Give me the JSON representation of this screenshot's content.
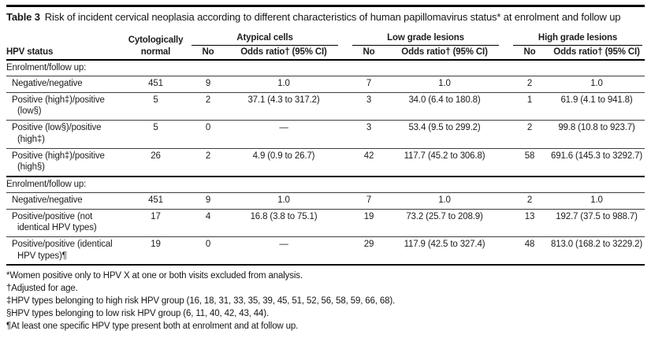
{
  "colors": {
    "text": "#1c1c1c",
    "rule": "#000000",
    "background": "#ffffff"
  },
  "title": {
    "label": "Table 3",
    "text": "Risk of incident cervical neoplasia according to different characteristics of human papillomavirus status* at enrolment and follow up"
  },
  "table": {
    "header": {
      "hpv_status": "HPV status",
      "cyto_normal": "Cytologically normal",
      "groups": [
        {
          "label": "Atypical cells",
          "no": "No",
          "or": "Odds ratio† (95% CI)"
        },
        {
          "label": "Low grade lesions",
          "no": "No",
          "or": "Odds ratio† (95% CI)"
        },
        {
          "label": "High grade lesions",
          "no": "No",
          "or": "Odds ratio† (95% CI)"
        }
      ]
    },
    "sections": [
      {
        "header": "Enrolment/follow up:",
        "rows": [
          {
            "status": "Negative/negative",
            "cyto": "451",
            "atypical": {
              "no": "9",
              "or": "1.0"
            },
            "low": {
              "no": "7",
              "or": "1.0"
            },
            "high": {
              "no": "2",
              "or": "1.0"
            }
          },
          {
            "status": "Positive (high‡)/positive (low§)",
            "cyto": "5",
            "atypical": {
              "no": "2",
              "or": "37.1 (4.3 to 317.2)"
            },
            "low": {
              "no": "3",
              "or": "34.0 (6.4 to 180.8)"
            },
            "high": {
              "no": "1",
              "or": "61.9 (4.1 to 941.8)"
            }
          },
          {
            "status": "Positive (low§)/positive (high‡)",
            "cyto": "5",
            "atypical": {
              "no": "0",
              "or": "—"
            },
            "low": {
              "no": "3",
              "or": "53.4 (9.5 to 299.2)"
            },
            "high": {
              "no": "2",
              "or": "99.8 (10.8 to 923.7)"
            }
          },
          {
            "status": "Positive (high‡)/positive (high§)",
            "cyto": "26",
            "atypical": {
              "no": "2",
              "or": "4.9 (0.9 to 26.7)"
            },
            "low": {
              "no": "42",
              "or": "117.7 (45.2 to 306.8)"
            },
            "high": {
              "no": "58",
              "or": "691.6 (145.3 to 3292.7)"
            }
          }
        ]
      },
      {
        "header": "Enrolment/follow up:",
        "rows": [
          {
            "status": "Negative/negative",
            "cyto": "451",
            "atypical": {
              "no": "9",
              "or": "1.0"
            },
            "low": {
              "no": "7",
              "or": "1.0"
            },
            "high": {
              "no": "2",
              "or": "1.0"
            }
          },
          {
            "status": "Positive/positive (not identical HPV types)",
            "cyto": "17",
            "atypical": {
              "no": "4",
              "or": "16.8 (3.8 to 75.1)"
            },
            "low": {
              "no": "19",
              "or": "73.2 (25.7 to 208.9)"
            },
            "high": {
              "no": "13",
              "or": "192.7 (37.5 to 988.7)"
            }
          },
          {
            "status": "Positive/positive (identical HPV types)¶",
            "cyto": "19",
            "atypical": {
              "no": "0",
              "or": "—"
            },
            "low": {
              "no": "29",
              "or": "117.9 (42.5 to 327.4)"
            },
            "high": {
              "no": "48",
              "or": "813.0 (168.2 to 3229.2)"
            }
          }
        ]
      }
    ]
  },
  "footnotes": [
    "*Women positive only to HPV X at one or both visits excluded from analysis.",
    "†Adjusted for age.",
    "‡HPV types belonging to high risk HPV group (16, 18, 31, 33, 35, 39, 45, 51, 52, 56, 58, 59, 66, 68).",
    "§HPV types belonging to low risk HPV group (6, 11, 40, 42, 43, 44).",
    "¶At least one specific HPV type present both at enrolment and at follow up."
  ]
}
